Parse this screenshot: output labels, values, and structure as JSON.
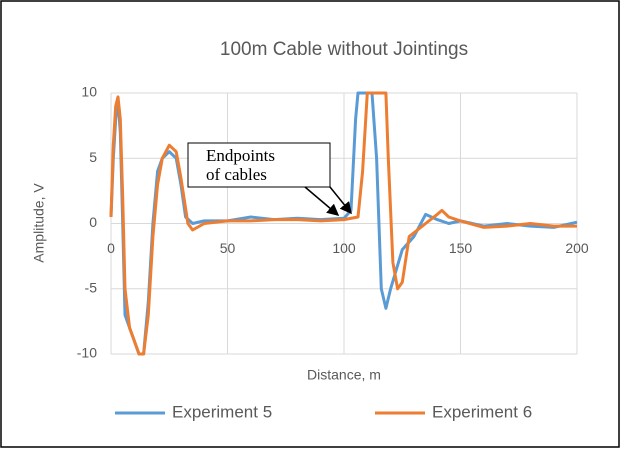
{
  "chart_data": {
    "type": "line",
    "title": "100m Cable without Jointings",
    "x_label": "Distance, m",
    "y_label": "Amplitude, V",
    "annotation": [
      "Endpoints",
      "of cables"
    ],
    "xlim": [
      0,
      200
    ],
    "xticks": [
      0,
      50,
      100,
      150,
      200
    ],
    "ylim": [
      -10,
      10
    ],
    "yticks": [
      -10,
      -5,
      0,
      5,
      10
    ],
    "grid": true,
    "legend": "bottom",
    "series": [
      {
        "name": "Experiment 5",
        "color": "#5b9bd5",
        "x": [
          0,
          1,
          2,
          3,
          4,
          5,
          6,
          8,
          10,
          12,
          14,
          16,
          18,
          20,
          22,
          25,
          28,
          30,
          32,
          35,
          40,
          50,
          60,
          70,
          80,
          90,
          100,
          103,
          105,
          106,
          110,
          112,
          114,
          116,
          118,
          120,
          125,
          130,
          135,
          140,
          145,
          150,
          160,
          170,
          180,
          190,
          200
        ],
        "values": [
          0.5,
          5,
          8,
          9.5,
          7,
          0,
          -7,
          -8,
          -9,
          -10,
          -10,
          -6,
          0,
          4,
          5,
          5.5,
          5,
          3,
          0.5,
          0,
          0.2,
          0.2,
          0.5,
          0.3,
          0.4,
          0.3,
          0.4,
          1,
          8,
          10,
          10,
          10,
          5,
          -5,
          -6.5,
          -5,
          -2,
          -1,
          0.7,
          0.3,
          0,
          0.2,
          -0.2,
          0,
          -0.2,
          -0.3,
          0.1
        ]
      },
      {
        "name": "Experiment 6",
        "color": "#ed7d31",
        "x": [
          0,
          1,
          2,
          3,
          4,
          5,
          6,
          8,
          10,
          12,
          14,
          16,
          18,
          20,
          22,
          25,
          28,
          30,
          33,
          35,
          40,
          50,
          60,
          70,
          80,
          90,
          100,
          106,
          108,
          110,
          115,
          118,
          119,
          121,
          123,
          125,
          128,
          135,
          140,
          142,
          145,
          150,
          160,
          170,
          180,
          190,
          200
        ],
        "values": [
          0.5,
          6,
          9,
          9.7,
          8,
          2,
          -5,
          -8,
          -9,
          -10,
          -10,
          -7,
          -1,
          3,
          5,
          6,
          5.5,
          3.5,
          0,
          -0.5,
          0,
          0.2,
          0.2,
          0.3,
          0.3,
          0.2,
          0.3,
          0.5,
          4,
          10,
          10,
          10,
          5,
          -3,
          -5,
          -4.5,
          -1,
          0,
          0.7,
          1,
          0.5,
          0.2,
          -0.3,
          -0.2,
          0,
          -0.2,
          -0.2
        ]
      }
    ]
  }
}
